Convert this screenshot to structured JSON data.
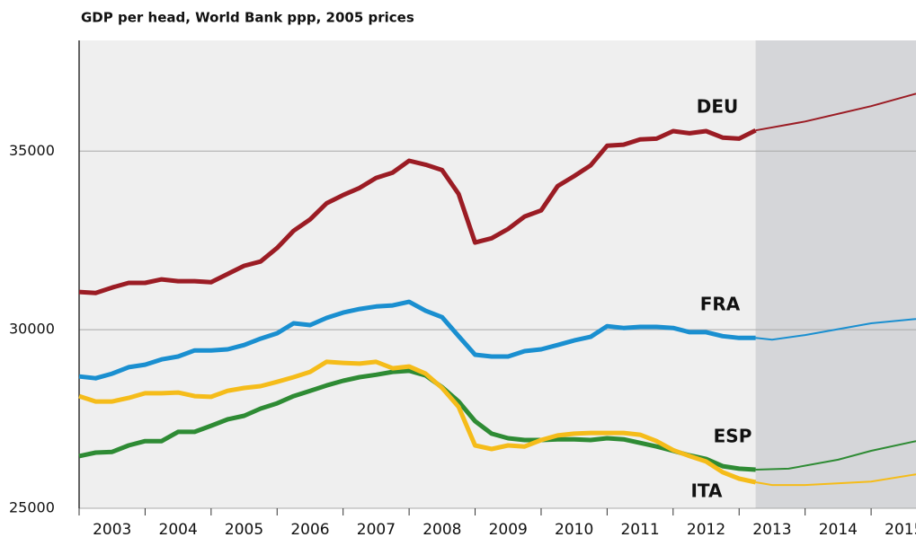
{
  "chart_data": {
    "type": "line",
    "title": "GDP per head, World Bank ppp, 2005 prices",
    "x": [
      2003,
      2003.25,
      2003.5,
      2003.75,
      2004,
      2004.25,
      2004.5,
      2004.75,
      2005,
      2005.25,
      2005.5,
      2005.75,
      2006,
      2006.25,
      2006.5,
      2006.75,
      2007,
      2007.25,
      2007.5,
      2007.75,
      2008,
      2008.25,
      2008.5,
      2008.75,
      2009,
      2009.25,
      2009.5,
      2009.75,
      2010,
      2010.25,
      2010.5,
      2010.75,
      2011,
      2011.25,
      2011.5,
      2011.75,
      2012,
      2012.25,
      2012.5,
      2012.75,
      2013,
      2013.25
    ],
    "forecast_start": 2013.25,
    "series": [
      {
        "name": "DEU",
        "color": "#9b1c24",
        "values": [
          31057,
          31030,
          31180,
          31310,
          31310,
          31410,
          31360,
          31360,
          31330,
          31560,
          31790,
          31910,
          32290,
          32770,
          33090,
          33540,
          33770,
          33970,
          34250,
          34400,
          34730,
          34620,
          34470,
          33800,
          32440,
          32560,
          32820,
          33170,
          33340,
          34020,
          34300,
          34600,
          35150,
          35180,
          35330,
          35350,
          35560,
          35500,
          35560,
          35380,
          35350,
          35580
        ],
        "forecast": {
          "x": [
            2013.25,
            2014,
            2015,
            2015.68
          ],
          "values": [
            35580,
            35830,
            36260,
            36610
          ]
        }
      },
      {
        "name": "FRA",
        "color": "#1a8fd0",
        "values": [
          28690,
          28640,
          28770,
          28950,
          29020,
          29170,
          29250,
          29420,
          29420,
          29450,
          29570,
          29750,
          29900,
          30180,
          30130,
          30330,
          30480,
          30580,
          30650,
          30680,
          30780,
          30530,
          30350,
          29820,
          29300,
          29250,
          29250,
          29400,
          29450,
          29570,
          29700,
          29800,
          30100,
          30050,
          30080,
          30080,
          30050,
          29930,
          29930,
          29820,
          29770,
          29770
        ],
        "forecast": {
          "x": [
            2013.25,
            2013.5,
            2014,
            2015,
            2015.68
          ],
          "values": [
            29770,
            29720,
            29850,
            30180,
            30300
          ]
        }
      },
      {
        "name": "ESP",
        "color": "#2e8b34",
        "values": [
          26460,
          26560,
          26580,
          26760,
          26880,
          26880,
          27140,
          27140,
          27310,
          27490,
          27590,
          27790,
          27940,
          28140,
          28290,
          28440,
          28570,
          28670,
          28740,
          28820,
          28850,
          28720,
          28390,
          27990,
          27440,
          27090,
          26960,
          26910,
          26910,
          26930,
          26930,
          26910,
          26960,
          26930,
          26830,
          26730,
          26610,
          26480,
          26380,
          26180,
          26110,
          26080
        ],
        "forecast": {
          "x": [
            2013.25,
            2013.75,
            2014.5,
            2015,
            2015.68
          ],
          "values": [
            26080,
            26110,
            26360,
            26610,
            26880
          ]
        }
      },
      {
        "name": "ITA",
        "color": "#f5bc1a",
        "values": [
          28140,
          27990,
          27990,
          28090,
          28220,
          28220,
          28240,
          28140,
          28120,
          28290,
          28370,
          28420,
          28540,
          28670,
          28820,
          29100,
          29070,
          29050,
          29100,
          28920,
          28970,
          28770,
          28370,
          27840,
          26760,
          26660,
          26760,
          26730,
          26910,
          27040,
          27090,
          27110,
          27110,
          27110,
          27060,
          26880,
          26630,
          26460,
          26310,
          26010,
          25830,
          25730
        ],
        "forecast": {
          "x": [
            2013.25,
            2013.5,
            2014,
            2015,
            2015.68
          ],
          "values": [
            25730,
            25650,
            25650,
            25750,
            25950
          ]
        }
      }
    ],
    "xlim": [
      2003,
      2015.68
    ],
    "xticks": [
      2003,
      2004,
      2005,
      2006,
      2007,
      2008,
      2009,
      2010,
      2011,
      2012,
      2013,
      2014,
      2015
    ],
    "ylim": [
      25000,
      38100
    ],
    "yticks": [
      25000,
      30000,
      35000
    ],
    "grid": true
  }
}
